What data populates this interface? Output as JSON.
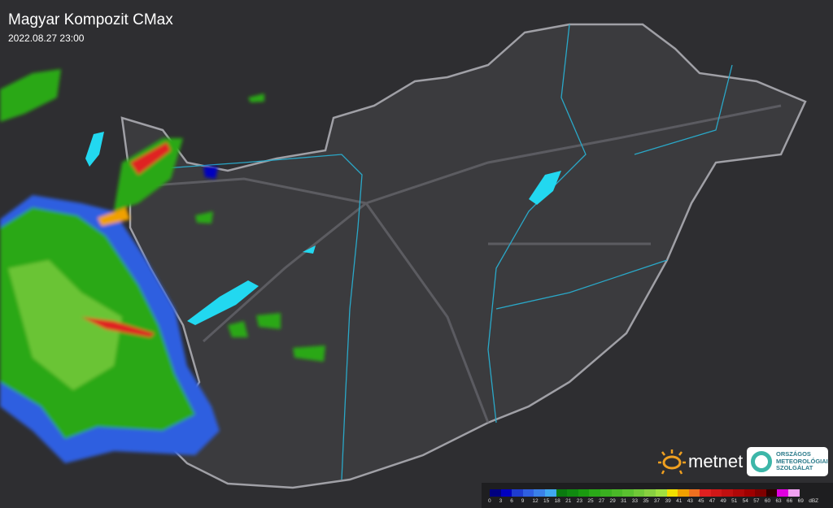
{
  "header": {
    "title": "Magyar Kompozit CMax",
    "timestamp": "2022.08.27 23:00"
  },
  "logos": {
    "metnet": "metnet",
    "oms": [
      "ORSZÁGOS",
      "METEOROLÓGIAI",
      "SZOLGÁLAT"
    ]
  },
  "legend": {
    "unit": "dBZ",
    "labels": [
      "0",
      "3",
      "6",
      "9",
      "12",
      "15",
      "18",
      "21",
      "23",
      "25",
      "27",
      "29",
      "31",
      "33",
      "35",
      "37",
      "39",
      "41",
      "43",
      "45",
      "47",
      "49",
      "51",
      "54",
      "57",
      "60",
      "63",
      "66",
      "69"
    ],
    "colors": [
      "#000080",
      "#0000c0",
      "#1e3cd0",
      "#2f5fe0",
      "#3a80e8",
      "#40a8f0",
      "#0a7a10",
      "#108a10",
      "#1a9a10",
      "#2aa818",
      "#3ab020",
      "#4ab828",
      "#5ac030",
      "#70c838",
      "#88d040",
      "#a0e040",
      "#f0e000",
      "#f0a000",
      "#f07020",
      "#e02020",
      "#d01818",
      "#c01010",
      "#b00808",
      "#a00000",
      "#800000",
      "#300000",
      "#e000e0",
      "#f0a0f0",
      "#90f0f0"
    ]
  },
  "colors": {
    "background": "#303033",
    "country": "#3a3a3d",
    "border": "#9a9aa0",
    "rivers": "#2aa8c8",
    "lakes": "#22d8f0"
  }
}
